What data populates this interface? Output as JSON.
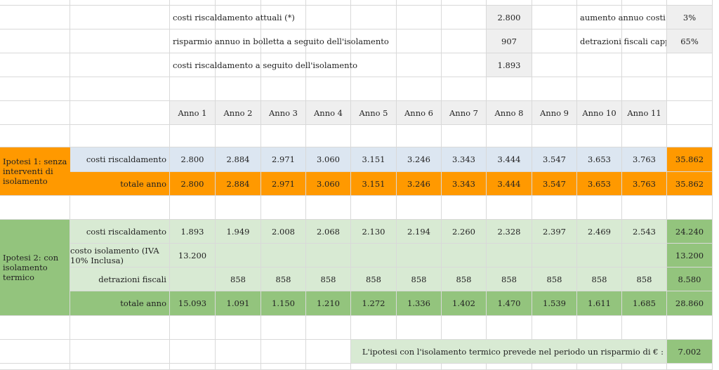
{
  "params": {
    "costi_attuali_label": "costi riscaldamento attuali (*)",
    "costi_attuali_value": "2.800",
    "risparmio_label": "risparmio annuo in bolletta a seguito dell'isolamento",
    "risparmio_value": "907",
    "costi_dopo_label": "costi riscaldamento a seguito dell'isolamento",
    "costi_dopo_value": "1.893",
    "aumento_label": "aumento annuo costi",
    "aumento_value": "3%",
    "detrazioni_label": "detrazioni fiscali cappotto",
    "detrazioni_value": "65%"
  },
  "years": [
    "Anno 1",
    "Anno 2",
    "Anno 3",
    "Anno 4",
    "Anno 5",
    "Anno 6",
    "Anno 7",
    "Anno 8",
    "Anno 9",
    "Anno 10",
    "Anno 11"
  ],
  "ipotesi1": {
    "title": "Ipotesi 1: senza interventi di isolamento",
    "rows": [
      {
        "label": "costi riscaldamento",
        "values": [
          "2.800",
          "2.884",
          "2.971",
          "3.060",
          "3.151",
          "3.246",
          "3.343",
          "3.444",
          "3.547",
          "3.653",
          "3.763"
        ],
        "total": "35.862"
      },
      {
        "label": "totale anno",
        "values": [
          "2.800",
          "2.884",
          "2.971",
          "3.060",
          "3.151",
          "3.246",
          "3.343",
          "3.444",
          "3.547",
          "3.653",
          "3.763"
        ],
        "total": "35.862"
      }
    ]
  },
  "ipotesi2": {
    "title": "Ipotesi 2: con isolamento termico",
    "rows": [
      {
        "label": "costi riscaldamento",
        "values": [
          "1.893",
          "1.949",
          "2.008",
          "2.068",
          "2.130",
          "2.194",
          "2.260",
          "2.328",
          "2.397",
          "2.469",
          "2.543"
        ],
        "total": "24.240"
      },
      {
        "label": "costo isolamento (IVA 10% Inclusa)",
        "values": [
          "13.200",
          "",
          "",
          "",
          "",
          "",
          "",
          "",
          "",
          "",
          ""
        ],
        "total": "13.200"
      },
      {
        "label": "detrazioni fiscali",
        "values": [
          "",
          "858",
          "858",
          "858",
          "858",
          "858",
          "858",
          "858",
          "858",
          "858",
          "858"
        ],
        "total": "8.580"
      },
      {
        "label": "totale anno",
        "values": [
          "15.093",
          "1.091",
          "1.150",
          "1.210",
          "1.272",
          "1.336",
          "1.402",
          "1.470",
          "1.539",
          "1.611",
          "1.685"
        ],
        "total": "28.860"
      }
    ]
  },
  "conclusion": {
    "text": "L'ipotesi con l'isolamento termico prevede nel periodo un risparmio di € :",
    "value": "7.002"
  },
  "colors": {
    "gray": "#efefef",
    "blue": "#dce6f1",
    "orange": "#ff9900",
    "light_green": "#d8ead3",
    "dark_green": "#93c47d"
  }
}
